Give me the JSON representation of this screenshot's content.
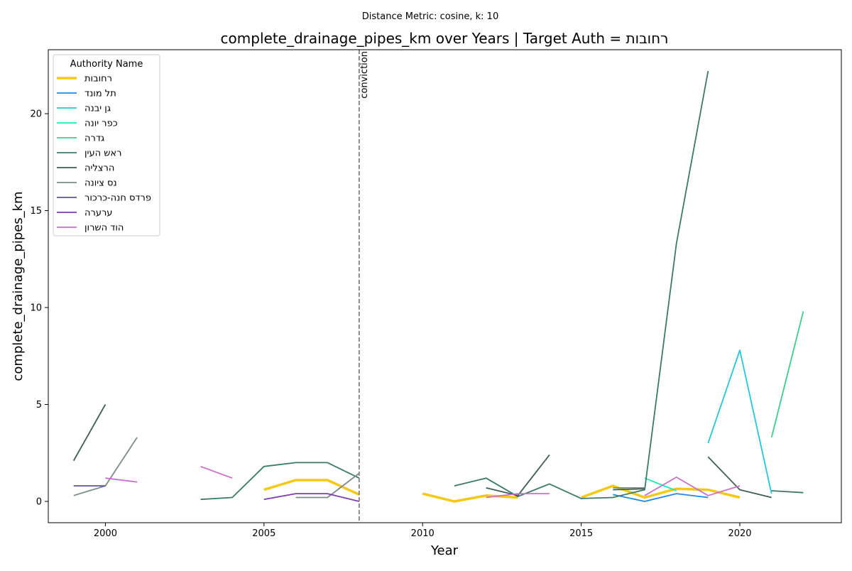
{
  "chart_data": {
    "type": "line",
    "suptitle": "Distance Metric: cosine, k: 10",
    "title": "complete_drainage_pipes_km over Years | Target Auth = רחובות",
    "xlabel": "Year",
    "ylabel": "complete_drainage_pipes_km",
    "xlim": [
      1998.2,
      2023.2
    ],
    "ylim": [
      -1.1,
      23.3
    ],
    "xticks": [
      2000,
      2005,
      2010,
      2015,
      2020
    ],
    "yticks": [
      0,
      5,
      10,
      15,
      20
    ],
    "grid": false,
    "legend": {
      "title": "Authority Name",
      "placement": "top-left"
    },
    "vline": {
      "x": 2008,
      "label": "conviction",
      "color": "#808080"
    },
    "series": [
      {
        "name": "רחובות",
        "color": "#f5c816",
        "target": true,
        "points": [
          [
            2005,
            0.6
          ],
          [
            2006,
            1.1
          ],
          [
            2007,
            1.1
          ],
          [
            2008,
            0.35
          ],
          null,
          [
            2010,
            0.4
          ],
          [
            2011,
            0.0
          ],
          [
            2012,
            0.3
          ],
          [
            2013,
            0.2
          ],
          null,
          [
            2015,
            0.2
          ],
          [
            2016,
            0.8
          ],
          [
            2017,
            0.2
          ],
          [
            2018,
            0.65
          ],
          [
            2019,
            0.6
          ],
          [
            2020,
            0.2
          ]
        ]
      },
      {
        "name": "תל מונד",
        "color": "#1e88e5",
        "points": [
          [
            2016,
            0.35
          ],
          [
            2017,
            0.0
          ],
          [
            2018,
            0.4
          ],
          [
            2019,
            0.2
          ]
        ]
      },
      {
        "name": "גן יבנה",
        "color": "#26c6da",
        "points": [
          [
            2019,
            3.0
          ],
          [
            2020,
            7.8
          ],
          [
            2021,
            0.4
          ]
        ]
      },
      {
        "name": "כפר יונה",
        "color": "#1de9b6",
        "points": [
          [
            2017,
            1.2
          ],
          [
            2018,
            0.55
          ]
        ]
      },
      {
        "name": "גדרה",
        "color": "#3ecf8e",
        "points": [
          [
            2021,
            3.3
          ],
          [
            2022,
            9.8
          ]
        ]
      },
      {
        "name": "ראש העין",
        "color": "#3b7a6b",
        "points": [
          [
            2003,
            0.1
          ],
          [
            2004,
            0.2
          ],
          [
            2005,
            1.8
          ],
          [
            2006,
            2.0
          ],
          [
            2007,
            2.0
          ],
          [
            2008,
            1.2
          ],
          null,
          [
            2011,
            0.8
          ],
          [
            2012,
            1.2
          ],
          [
            2013,
            0.25
          ],
          [
            2014,
            0.9
          ],
          [
            2015,
            0.15
          ],
          [
            2016,
            0.2
          ],
          [
            2017,
            0.6
          ],
          [
            2018,
            13.3
          ],
          [
            2019,
            22.2
          ],
          null,
          [
            2021,
            0.55
          ],
          [
            2022,
            0.45
          ]
        ]
      },
      {
        "name": "הרצליה",
        "color": "#3e5e52",
        "points": [
          [
            1999,
            2.1
          ],
          [
            2000,
            5.0
          ],
          null,
          [
            2012,
            0.7
          ],
          [
            2013,
            0.3
          ],
          [
            2014,
            2.4
          ],
          null,
          [
            2016,
            0.6
          ],
          [
            2017,
            0.65
          ],
          null,
          [
            2019,
            2.3
          ],
          [
            2020,
            0.6
          ],
          [
            2021,
            0.2
          ]
        ]
      },
      {
        "name": "נס ציונה",
        "color": "#7d8c84",
        "points": [
          [
            1999,
            0.3
          ],
          [
            2000,
            0.8
          ],
          [
            2001,
            3.3
          ],
          null,
          [
            2006,
            0.2
          ],
          [
            2007,
            0.2
          ],
          [
            2008,
            1.45
          ],
          null,
          [
            2016,
            0.7
          ],
          [
            2017,
            0.7
          ]
        ]
      },
      {
        "name": "פרדס חנה-כרכור",
        "color": "#5c4fb0",
        "points": [
          [
            1999,
            0.8
          ],
          [
            2000,
            0.8
          ]
        ]
      },
      {
        "name": "ערערה",
        "color": "#7e3db0",
        "points": [
          [
            2005,
            0.1
          ],
          [
            2006,
            0.4
          ],
          [
            2007,
            0.4
          ],
          [
            2008,
            0.0
          ]
        ]
      },
      {
        "name": "הוד השרון",
        "color": "#cc6fcc",
        "points": [
          [
            2000,
            1.2
          ],
          [
            2001,
            1.0
          ],
          null,
          [
            2003,
            1.8
          ],
          [
            2004,
            1.2
          ],
          null,
          [
            2012,
            0.2
          ],
          [
            2013,
            0.4
          ],
          [
            2014,
            0.4
          ],
          null,
          [
            2017,
            0.3
          ],
          [
            2018,
            1.25
          ],
          [
            2019,
            0.3
          ],
          [
            2020,
            0.8
          ]
        ]
      }
    ]
  }
}
